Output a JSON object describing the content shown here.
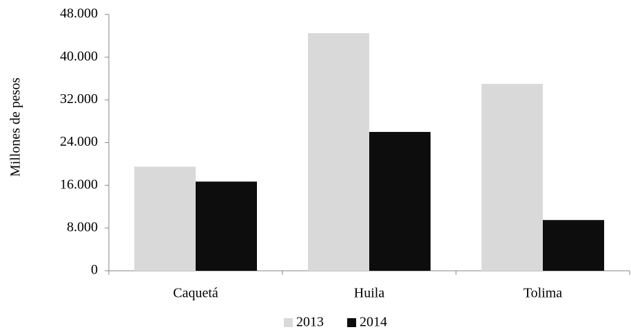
{
  "chart_data": {
    "type": "bar",
    "y_label": "Millones de pesos",
    "categories": [
      "Caquetá",
      "Huila",
      "Tolima"
    ],
    "series": [
      {
        "name": "2013",
        "color": "#d9d9d9",
        "values": [
          19500,
          44500,
          35000
        ]
      },
      {
        "name": "2014",
        "color": "#0d0d0d",
        "values": [
          16700,
          26000,
          9500
        ]
      }
    ],
    "ylim": [
      0,
      48000
    ],
    "yticks": [
      0,
      {
        "value": 8000,
        "label": "8.000"
      },
      {
        "value": 16000,
        "label": "16.000"
      },
      {
        "value": 24000,
        "label": "24.000"
      },
      {
        "value": 32000,
        "label": "32.000"
      },
      {
        "value": 40000,
        "label": "40.000"
      },
      {
        "value": 48000,
        "label": "48.000"
      }
    ],
    "grid": false,
    "legend": "bottom"
  }
}
